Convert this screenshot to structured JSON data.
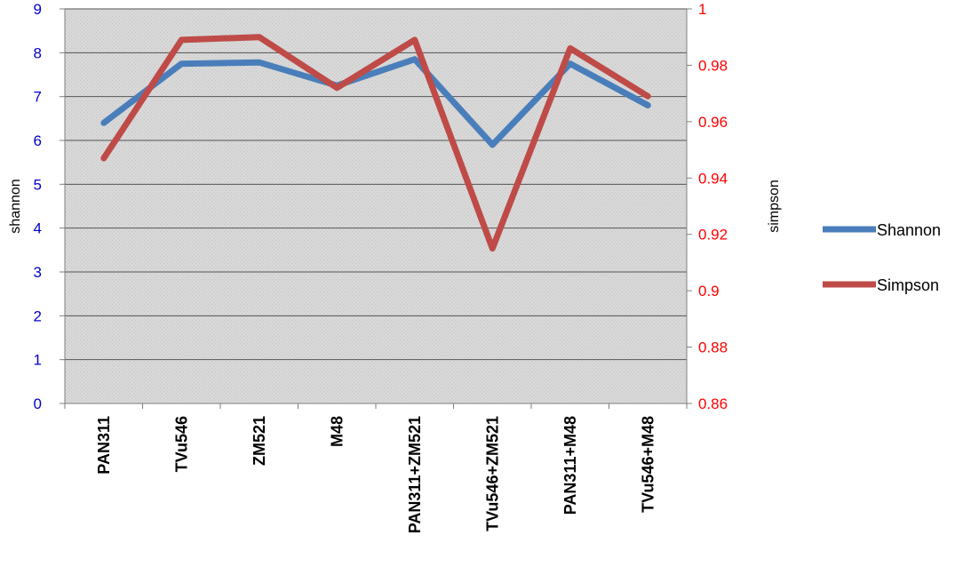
{
  "chart_data": {
    "type": "line",
    "categories": [
      "PAN311",
      "TVu546",
      "ZM521",
      "M48",
      "PAN311+ZM521",
      "TVu546+ZM521",
      "PAN311+M48",
      "TVu546+M48"
    ],
    "series": [
      {
        "name": "Shannon",
        "axis": "left",
        "color": "#4a7ebb",
        "values": [
          6.4,
          7.75,
          7.78,
          7.25,
          7.85,
          5.9,
          7.75,
          6.8
        ]
      },
      {
        "name": "Simpson",
        "axis": "right",
        "color": "#be4b48",
        "values": [
          0.947,
          0.989,
          0.99,
          0.972,
          0.989,
          0.915,
          0.986,
          0.969
        ]
      }
    ],
    "ylabel_left": "shannon",
    "ylabel_right": "simpson",
    "ylim_left": [
      0,
      9
    ],
    "ylim_right": [
      0.86,
      1
    ],
    "yticks_left": [
      "0",
      "1",
      "2",
      "3",
      "4",
      "5",
      "6",
      "7",
      "8",
      "9"
    ],
    "yticks_right": [
      "0.86",
      "0.88",
      "0.9",
      "0.92",
      "0.94",
      "0.96",
      "0.98",
      "1"
    ],
    "left_tick_color": "#0000cc",
    "right_tick_color": "#ff0000",
    "plot_background": "#dcdcdc",
    "grid": true,
    "legend_position": "right"
  }
}
